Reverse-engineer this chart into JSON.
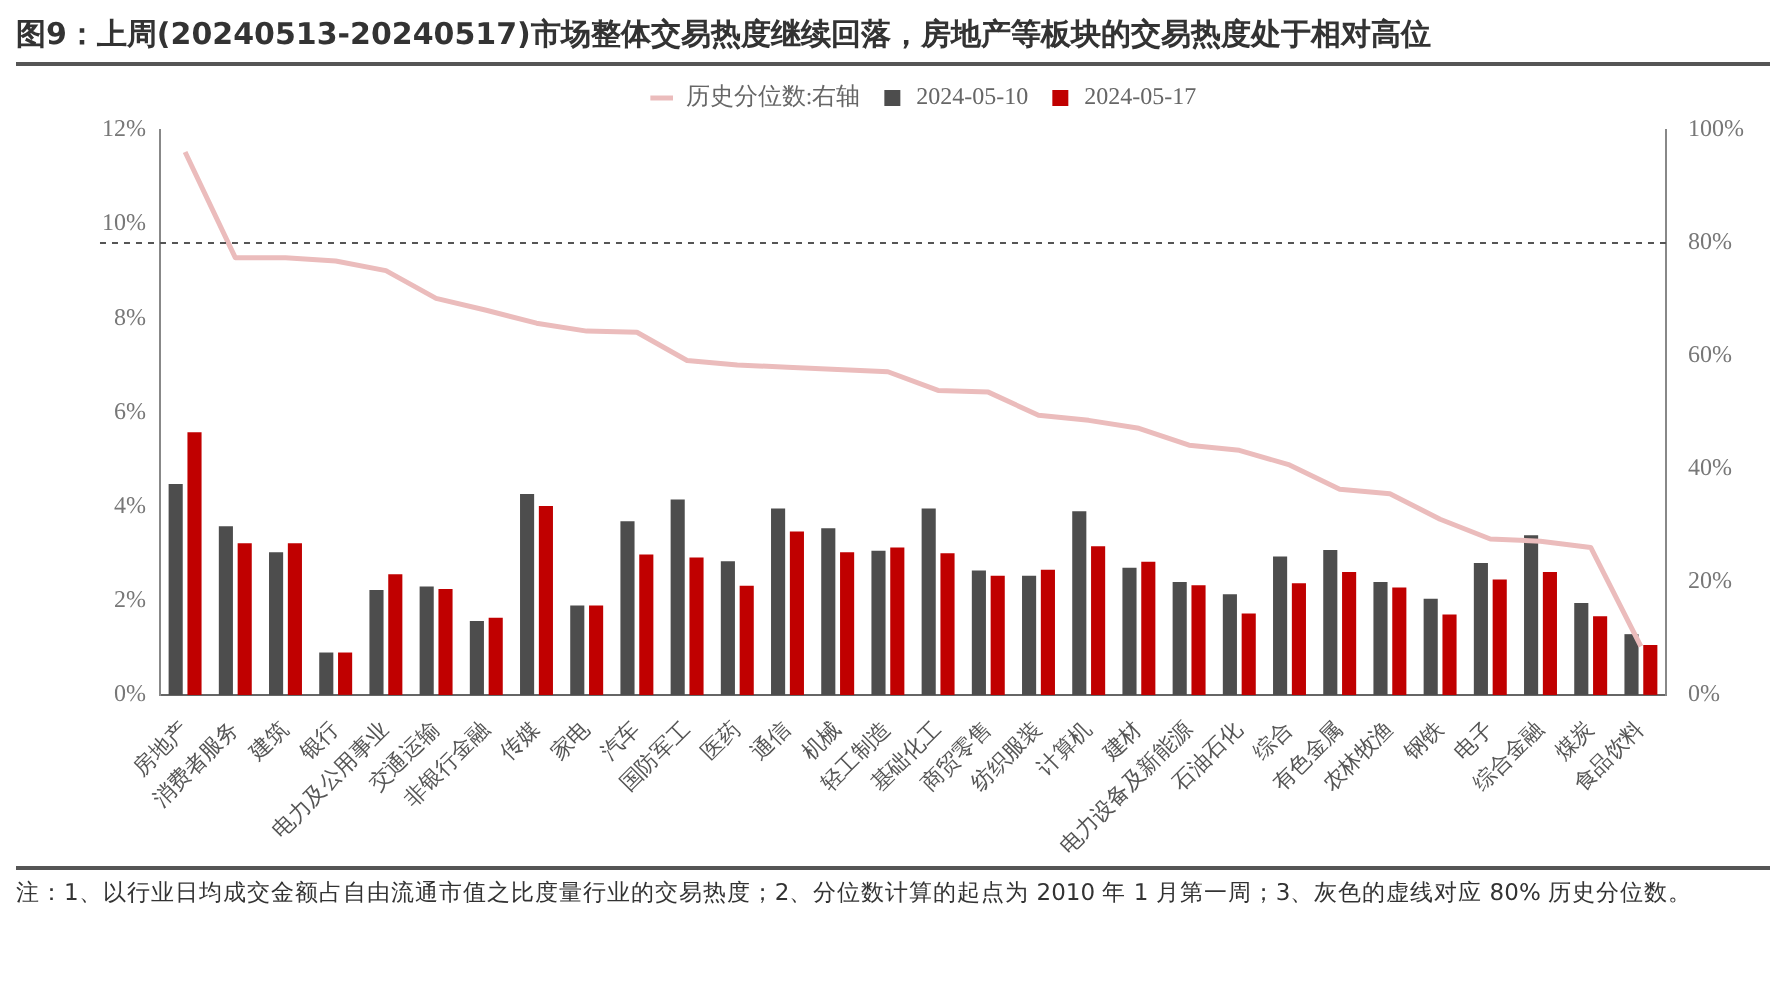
{
  "chart_data": {
    "type": "bar",
    "title": "图9：上周(20240513-20240517)市场整体交易热度继续回落，房地产等板块的交易热度处于相对高位",
    "categories": [
      "房地产",
      "消费者服务",
      "建筑",
      "银行",
      "电力及公用事业",
      "交通运输",
      "非银行金融",
      "传媒",
      "家电",
      "汽车",
      "国防军工",
      "医药",
      "通信",
      "机械",
      "轻工制造",
      "基础化工",
      "商贸零售",
      "纺织服装",
      "计算机",
      "建材",
      "电力设备及新能源",
      "石油石化",
      "综合",
      "有色金属",
      "农林牧渔",
      "钢铁",
      "电子",
      "综合金融",
      "煤炭",
      "食品饮料"
    ],
    "series": [
      {
        "name": "2024-05-10",
        "color": "#4d4d4d",
        "values": [
          4.48,
          3.58,
          3.03,
          0.9,
          2.23,
          2.3,
          1.57,
          4.27,
          1.9,
          3.69,
          4.15,
          2.84,
          3.96,
          3.54,
          3.06,
          3.96,
          2.64,
          2.53,
          3.9,
          2.7,
          2.4,
          2.14,
          2.94,
          3.08,
          2.4,
          2.04,
          2.8,
          3.39,
          1.95,
          1.29
        ]
      },
      {
        "name": "2024-05-17",
        "color": "#c00000",
        "values": [
          5.58,
          3.22,
          3.22,
          0.9,
          2.56,
          2.25,
          1.64,
          4.01,
          1.9,
          2.98,
          2.92,
          2.32,
          3.47,
          3.03,
          3.13,
          3.01,
          2.53,
          2.66,
          3.16,
          2.83,
          2.33,
          1.73,
          2.37,
          2.61,
          2.28,
          1.71,
          2.45,
          2.61,
          1.67,
          1.06
        ]
      },
      {
        "name": "历史分位数:右轴",
        "type": "line",
        "axis": "y2",
        "color": "#ebbcbc",
        "values": [
          96.1,
          77.4,
          77.4,
          76.8,
          75.1,
          70.2,
          68.1,
          65.8,
          64.4,
          64.2,
          59.2,
          58.4,
          58.0,
          57.6,
          57.2,
          53.9,
          53.6,
          49.5,
          48.6,
          47.2,
          44.2,
          43.3,
          40.7,
          36.4,
          35.6,
          31.1,
          27.6,
          27.2,
          26.1,
          8.6
        ]
      }
    ],
    "ylim": [
      0,
      12
    ],
    "yticks": [
      {
        "value": 0,
        "label": "0%"
      },
      {
        "value": 2,
        "label": "2%"
      },
      {
        "value": 4,
        "label": "4%"
      },
      {
        "value": 6,
        "label": "6%"
      },
      {
        "value": 8,
        "label": "8%"
      },
      {
        "value": 10,
        "label": "10%"
      },
      {
        "value": 12,
        "label": "12%"
      }
    ],
    "y2lim": [
      0,
      100
    ],
    "y2ticks": [
      {
        "value": 0,
        "label": "0%"
      },
      {
        "value": 20,
        "label": "20%"
      },
      {
        "value": 40,
        "label": "40%"
      },
      {
        "value": 60,
        "label": "60%"
      },
      {
        "value": 80,
        "label": "80%"
      },
      {
        "value": 100,
        "label": "100%"
      }
    ],
    "ref_lines": [
      {
        "axis": "y2",
        "value": 80,
        "color": "#555555",
        "line_style": "dashed"
      }
    ],
    "grid": false,
    "legend": "top",
    "marker": "none",
    "annotations": [
      "注：1、以行业日均成交金额占自由流通市值之比度量行业的交易热度；2、分位数计算的起点为 2010 年 1 月第一周；3、灰色的虚线对应 80% 历史分位数。"
    ]
  }
}
